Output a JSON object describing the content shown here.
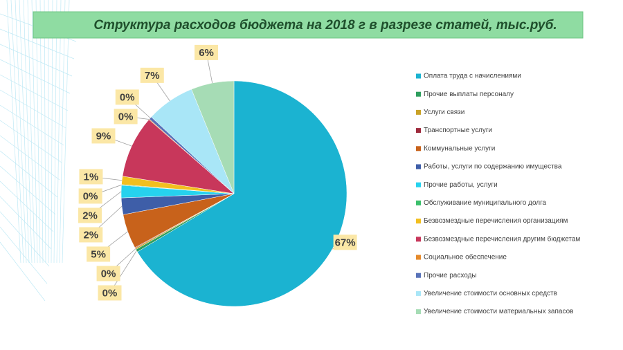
{
  "chart_data": {
    "type": "pie",
    "title": "Структура расходов бюджета  на 2018 г в разрезе статей, тыс.руб.",
    "categories": [
      "Оплата труда с начислениями",
      "Прочие выплаты персоналу",
      "Услуги связи",
      "Транспортные услуги",
      "Коммунальные услуги",
      "Работы, услуги по содержанию имущества",
      "Прочие работы, услуги",
      "Обслуживание муниципального долга",
      "Безвозмездные перечисления организациям",
      "Безвозмездные перечисления  другим бюджетам",
      "Социальное обеспечение",
      "Прочие расходы",
      "Увеличение стоимости основных средств",
      "Увеличение стоимости материальных запасов"
    ],
    "values": [
      66.9,
      0.4,
      0.2,
      0.1,
      5,
      2.4,
      1.8,
      0.1,
      1.2,
      9,
      0.1,
      0.4,
      7,
      6.2
    ],
    "value_labels": [
      "67%",
      "0%",
      "0%",
      null,
      "5%",
      "2%",
      "2%",
      "0%",
      "1%",
      "9%",
      "0%",
      "0%",
      "7%",
      "6%"
    ],
    "colors": [
      "#1bb3d1",
      "#2e9e5e",
      "#c9a227",
      "#9e2a3c",
      "#c8621b",
      "#3e5ea8",
      "#26d2ee",
      "#3bbf6b",
      "#f2bf1f",
      "#c8375b",
      "#e58a2b",
      "#5872b8",
      "#a9e6f7",
      "#a6dcb5"
    ],
    "legend": "right"
  }
}
